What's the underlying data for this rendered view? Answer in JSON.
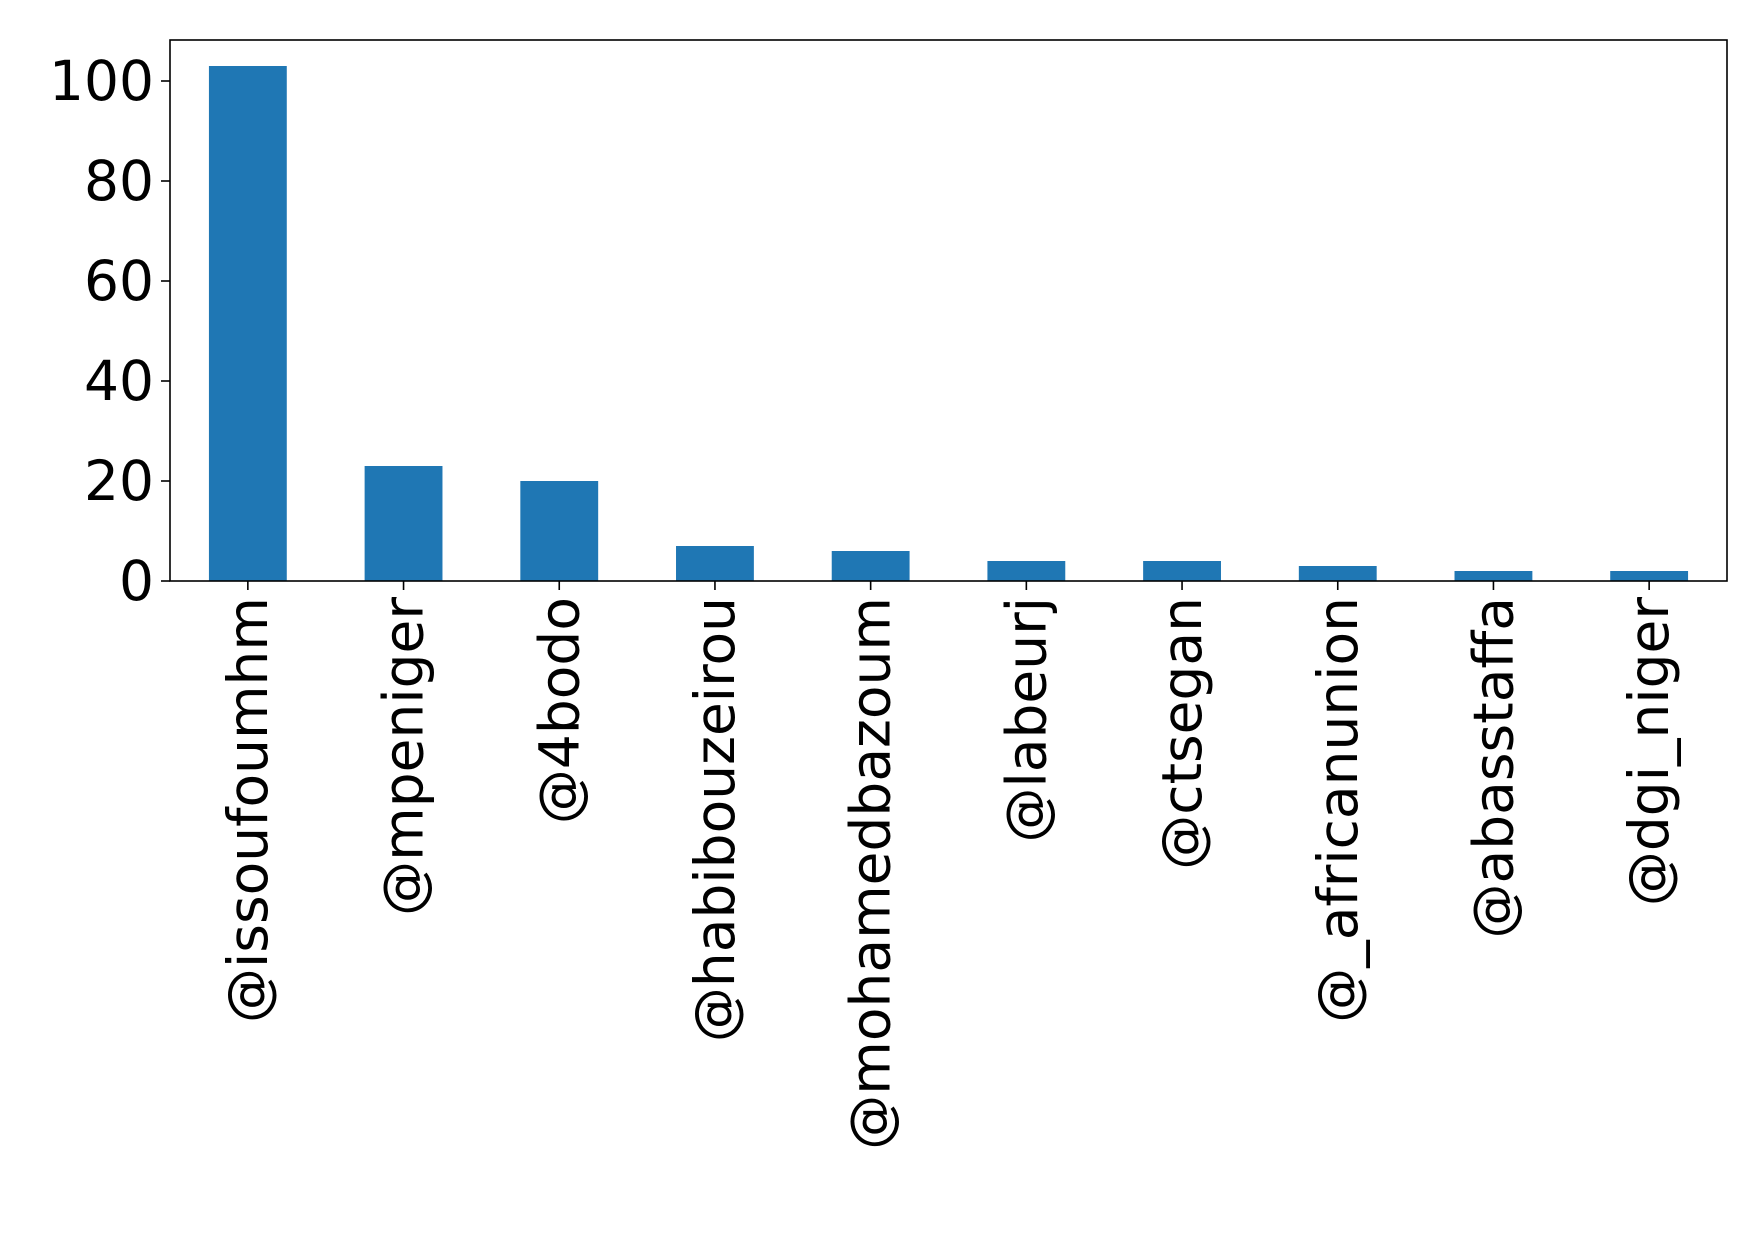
{
  "chart_data": {
    "type": "bar",
    "categories": [
      "@issoufoumhm",
      "@mpeniger",
      "@4bodo",
      "@habibouzeirou",
      "@mohamedbazoum",
      "@labeurj",
      "@ctsegan",
      "@_africanunion",
      "@abasstaffa",
      "@dgi_niger"
    ],
    "values": [
      103,
      23,
      20,
      7,
      6,
      4,
      4,
      3,
      2,
      2
    ],
    "y_ticks": [
      0,
      20,
      40,
      60,
      80,
      100
    ],
    "ylim": [
      0,
      108.2
    ],
    "grid": false,
    "legend": "none",
    "bar_color": "#1f77b4"
  }
}
